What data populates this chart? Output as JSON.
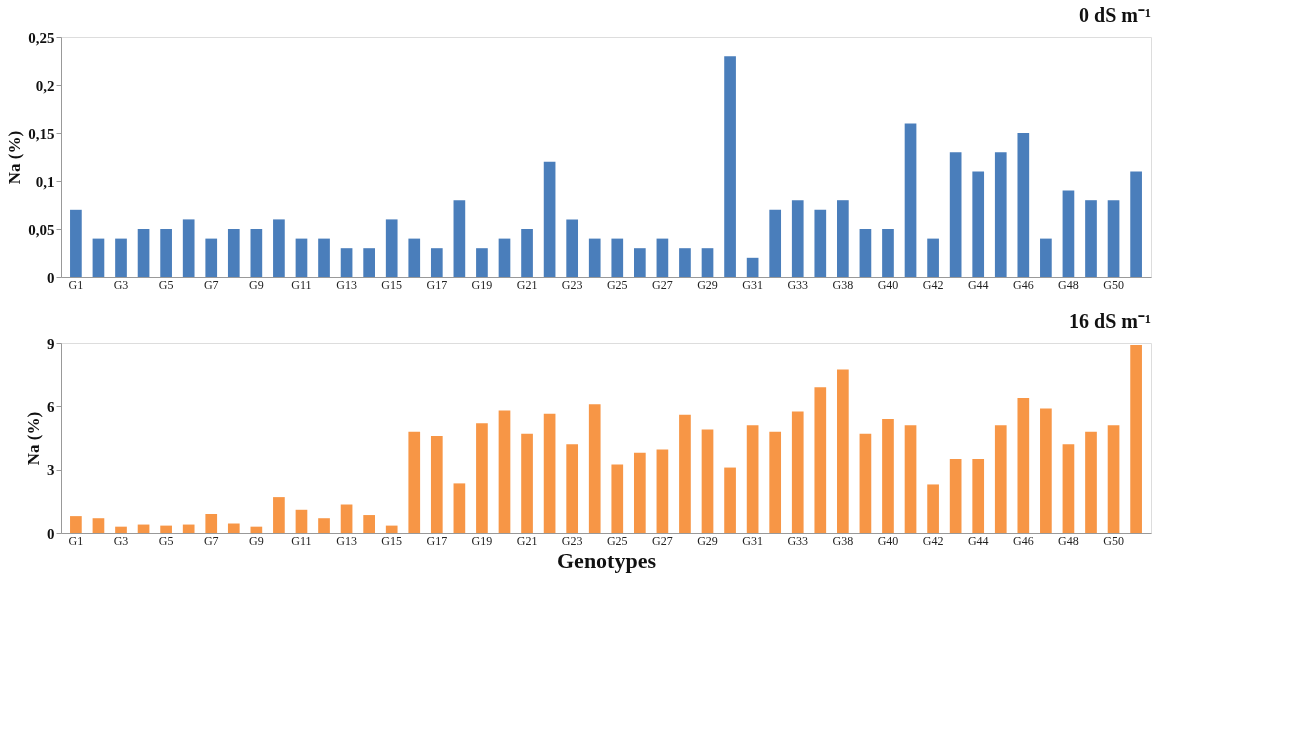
{
  "chart_data": [
    {
      "type": "bar",
      "title": "0 dS m⁻¹",
      "ylabel": "Na (%)",
      "categories": [
        "G1",
        null,
        "G3",
        null,
        "G5",
        null,
        "G7",
        null,
        "G9",
        null,
        "G11",
        null,
        "G13",
        null,
        "G15",
        null,
        "G17",
        null,
        "G19",
        null,
        "G21",
        null,
        "G23",
        null,
        "G25",
        null,
        "G27",
        null,
        "G29",
        null,
        "G31",
        null,
        "G33",
        null,
        "G38",
        null,
        "G40",
        null,
        "G42",
        null,
        "G44",
        null,
        "G46",
        null,
        "G48",
        null,
        "G50",
        null
      ],
      "series": [
        {
          "color": "#4a7ebb",
          "values": [
            0.07,
            0.04,
            0.04,
            0.05,
            0.05,
            0.06,
            0.04,
            0.05,
            0.05,
            0.06,
            0.04,
            0.04,
            0.03,
            0.03,
            0.06,
            0.04,
            0.03,
            0.08,
            0.03,
            0.04,
            0.05,
            0.12,
            0.06,
            0.04,
            0.04,
            0.03,
            0.04,
            0.03,
            0.03,
            0.23,
            0.02,
            0.07,
            0.08,
            0.07,
            0.08,
            0.05,
            0.05,
            0.16,
            0.04,
            0.13,
            0.11,
            0.13,
            0.15,
            0.04,
            0.09,
            0.08,
            0.08,
            0.11
          ]
        }
      ],
      "ylim": [
        0,
        0.25
      ],
      "yticks": [
        0,
        {
          "value": 0.05,
          "label": "0,05"
        },
        {
          "value": 0.1,
          "label": "0,1"
        },
        {
          "value": 0.15,
          "label": "0,15"
        },
        {
          "value": 0.2,
          "label": "0,2"
        },
        {
          "value": 0.25,
          "label": "0,25"
        }
      ],
      "grid": false
    },
    {
      "type": "bar",
      "title": "16 dS m⁻¹",
      "ylabel": "Na (%)",
      "xlabel": "Genotypes",
      "categories": [
        "G1",
        null,
        "G3",
        null,
        "G5",
        null,
        "G7",
        null,
        "G9",
        null,
        "G11",
        null,
        "G13",
        null,
        "G15",
        null,
        "G17",
        null,
        "G19",
        null,
        "G21",
        null,
        "G23",
        null,
        "G25",
        null,
        "G27",
        null,
        "G29",
        null,
        "G31",
        null,
        "G33",
        null,
        "G38",
        null,
        "G40",
        null,
        "G42",
        null,
        "G44",
        null,
        "G46",
        null,
        "G48",
        null,
        "G50",
        null
      ],
      "series": [
        {
          "color": "#f79646",
          "values": [
            0.8,
            0.7,
            0.3,
            0.4,
            0.35,
            0.4,
            0.9,
            0.45,
            0.3,
            1.7,
            1.1,
            0.7,
            1.35,
            0.85,
            0.35,
            4.8,
            4.6,
            2.35,
            5.2,
            5.8,
            4.7,
            5.65,
            4.2,
            6.1,
            3.25,
            3.8,
            3.95,
            5.6,
            4.9,
            3.1,
            5.1,
            4.8,
            5.75,
            6.9,
            7.75,
            4.7,
            5.4,
            5.1,
            2.3,
            3.5,
            3.5,
            5.1,
            6.4,
            5.9,
            4.2,
            4.8,
            5.1,
            8.9
          ]
        }
      ],
      "ylim": [
        0,
        9
      ],
      "yticks": [
        0,
        3,
        6,
        9
      ],
      "grid": false
    }
  ]
}
